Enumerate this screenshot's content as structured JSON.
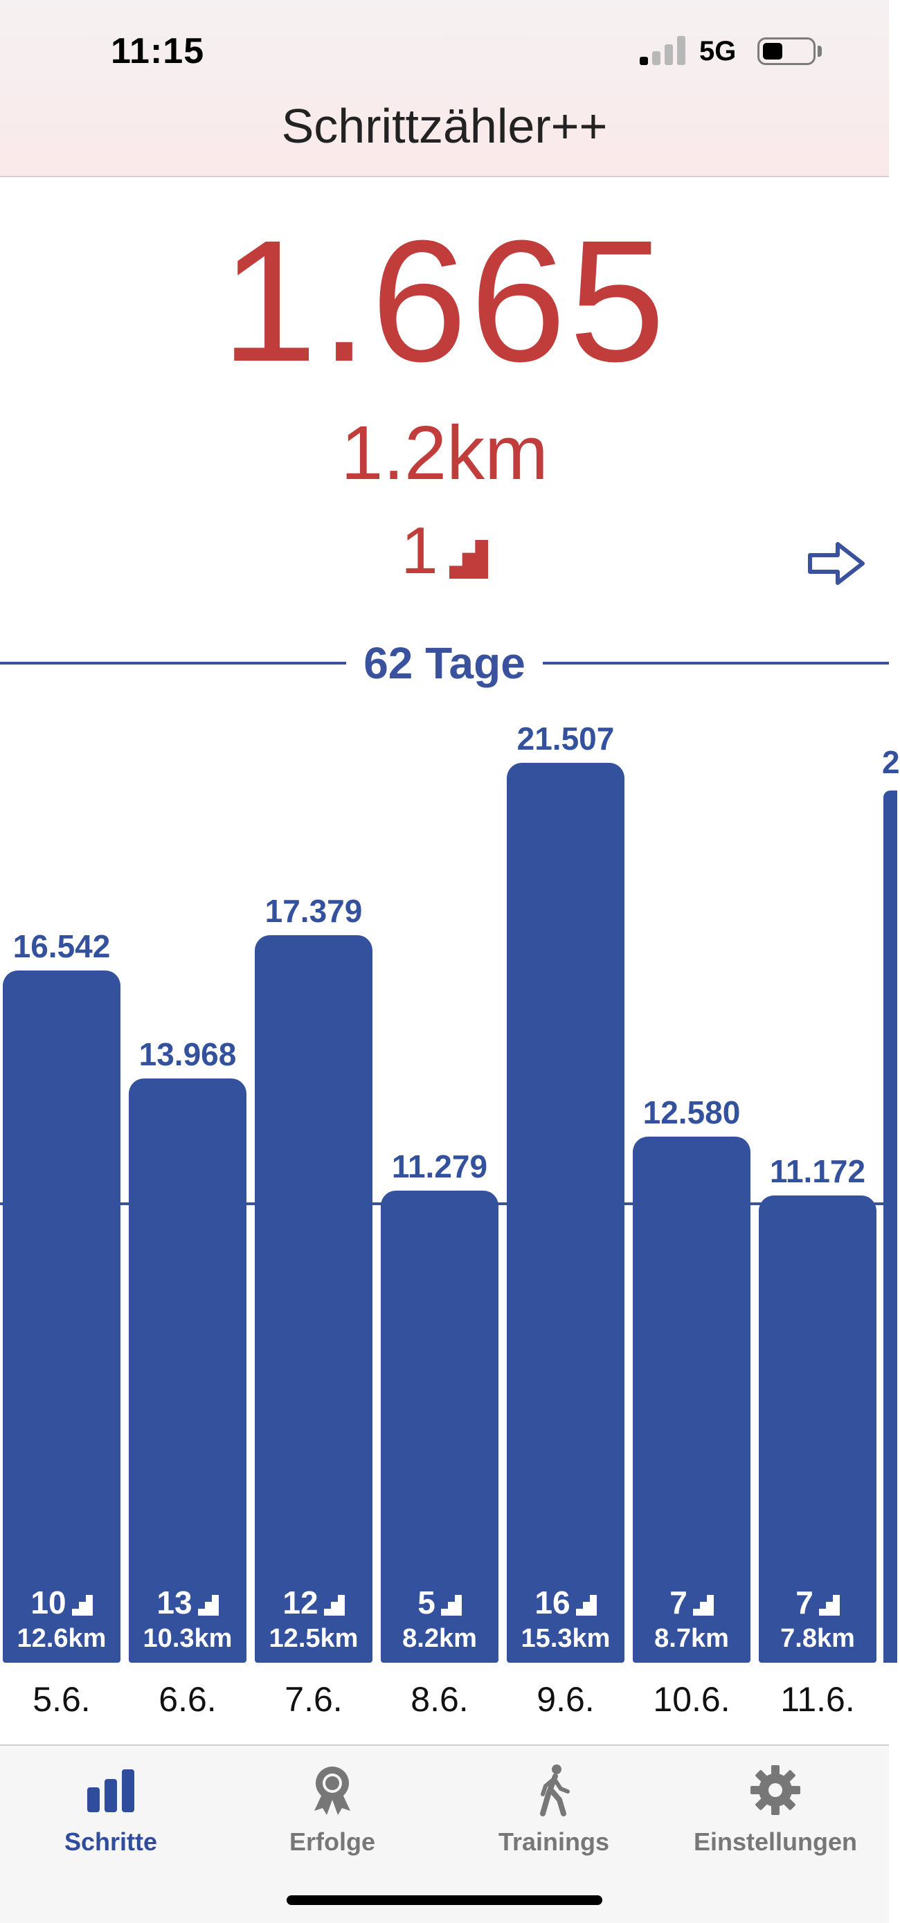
{
  "status_bar": {
    "time": "11:15",
    "network": "5G"
  },
  "app": {
    "title": "Schrittzähler++"
  },
  "today": {
    "steps": "1.665",
    "distance": "1.2km",
    "floors": "1"
  },
  "history": {
    "days_label": "62 Tage"
  },
  "colors": {
    "accent_red": "#c03d3c",
    "bar_blue": "#34519d",
    "tab_active": "#2f4d9c",
    "tab_inactive": "#777777"
  },
  "chart_data": {
    "type": "bar",
    "categories": [
      "5.6.",
      "6.6.",
      "7.6.",
      "8.6.",
      "9.6.",
      "10.6.",
      "11.6."
    ],
    "values": [
      16542,
      13968,
      17379,
      11279,
      21507,
      12580,
      11172
    ],
    "value_labels": [
      "16.542",
      "13.968",
      "17.379",
      "11.279",
      "21.507",
      "12.580",
      "11.172"
    ],
    "floors": [
      "10",
      "13",
      "12",
      "5",
      "16",
      "7",
      "7"
    ],
    "distances": [
      "12.6km",
      "10.3km",
      "12.5km",
      "8.2km",
      "15.3km",
      "8.7km",
      "7.8km"
    ],
    "reference_line": 11000,
    "ylim": [
      0,
      25000
    ],
    "grid": false
  },
  "tabs": [
    {
      "label": "Schritte",
      "icon": "bar-chart-icon",
      "active": true
    },
    {
      "label": "Erfolge",
      "icon": "medal-icon",
      "active": false
    },
    {
      "label": "Trainings",
      "icon": "walking-icon",
      "active": false
    },
    {
      "label": "Einstellungen",
      "icon": "gear-icon",
      "active": false
    }
  ]
}
